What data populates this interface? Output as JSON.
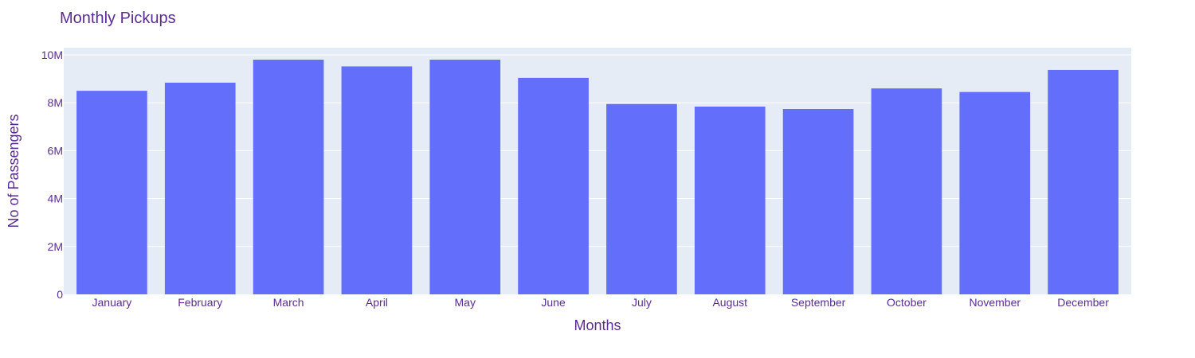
{
  "chart_data": {
    "type": "bar",
    "title": "Monthly Pickups",
    "xlabel": "Months",
    "ylabel": "No of Passengers",
    "categories": [
      "January",
      "February",
      "March",
      "April",
      "May",
      "June",
      "July",
      "August",
      "September",
      "October",
      "November",
      "December"
    ],
    "values": [
      8500000,
      8840000,
      9800000,
      9520000,
      9800000,
      9040000,
      7950000,
      7840000,
      7740000,
      8600000,
      8450000,
      9370000
    ],
    "ylim": [
      0,
      10000000
    ],
    "yticks": [
      0,
      2000000,
      4000000,
      6000000,
      8000000,
      10000000
    ],
    "ytick_labels": [
      "0",
      "2M",
      "4M",
      "6M",
      "8M",
      "10M"
    ],
    "grid": true,
    "colors": {
      "bar": "#636efa",
      "plot_bg": "#e5ecf6",
      "grid": "#ffffff",
      "text": "#5a2d91"
    }
  }
}
